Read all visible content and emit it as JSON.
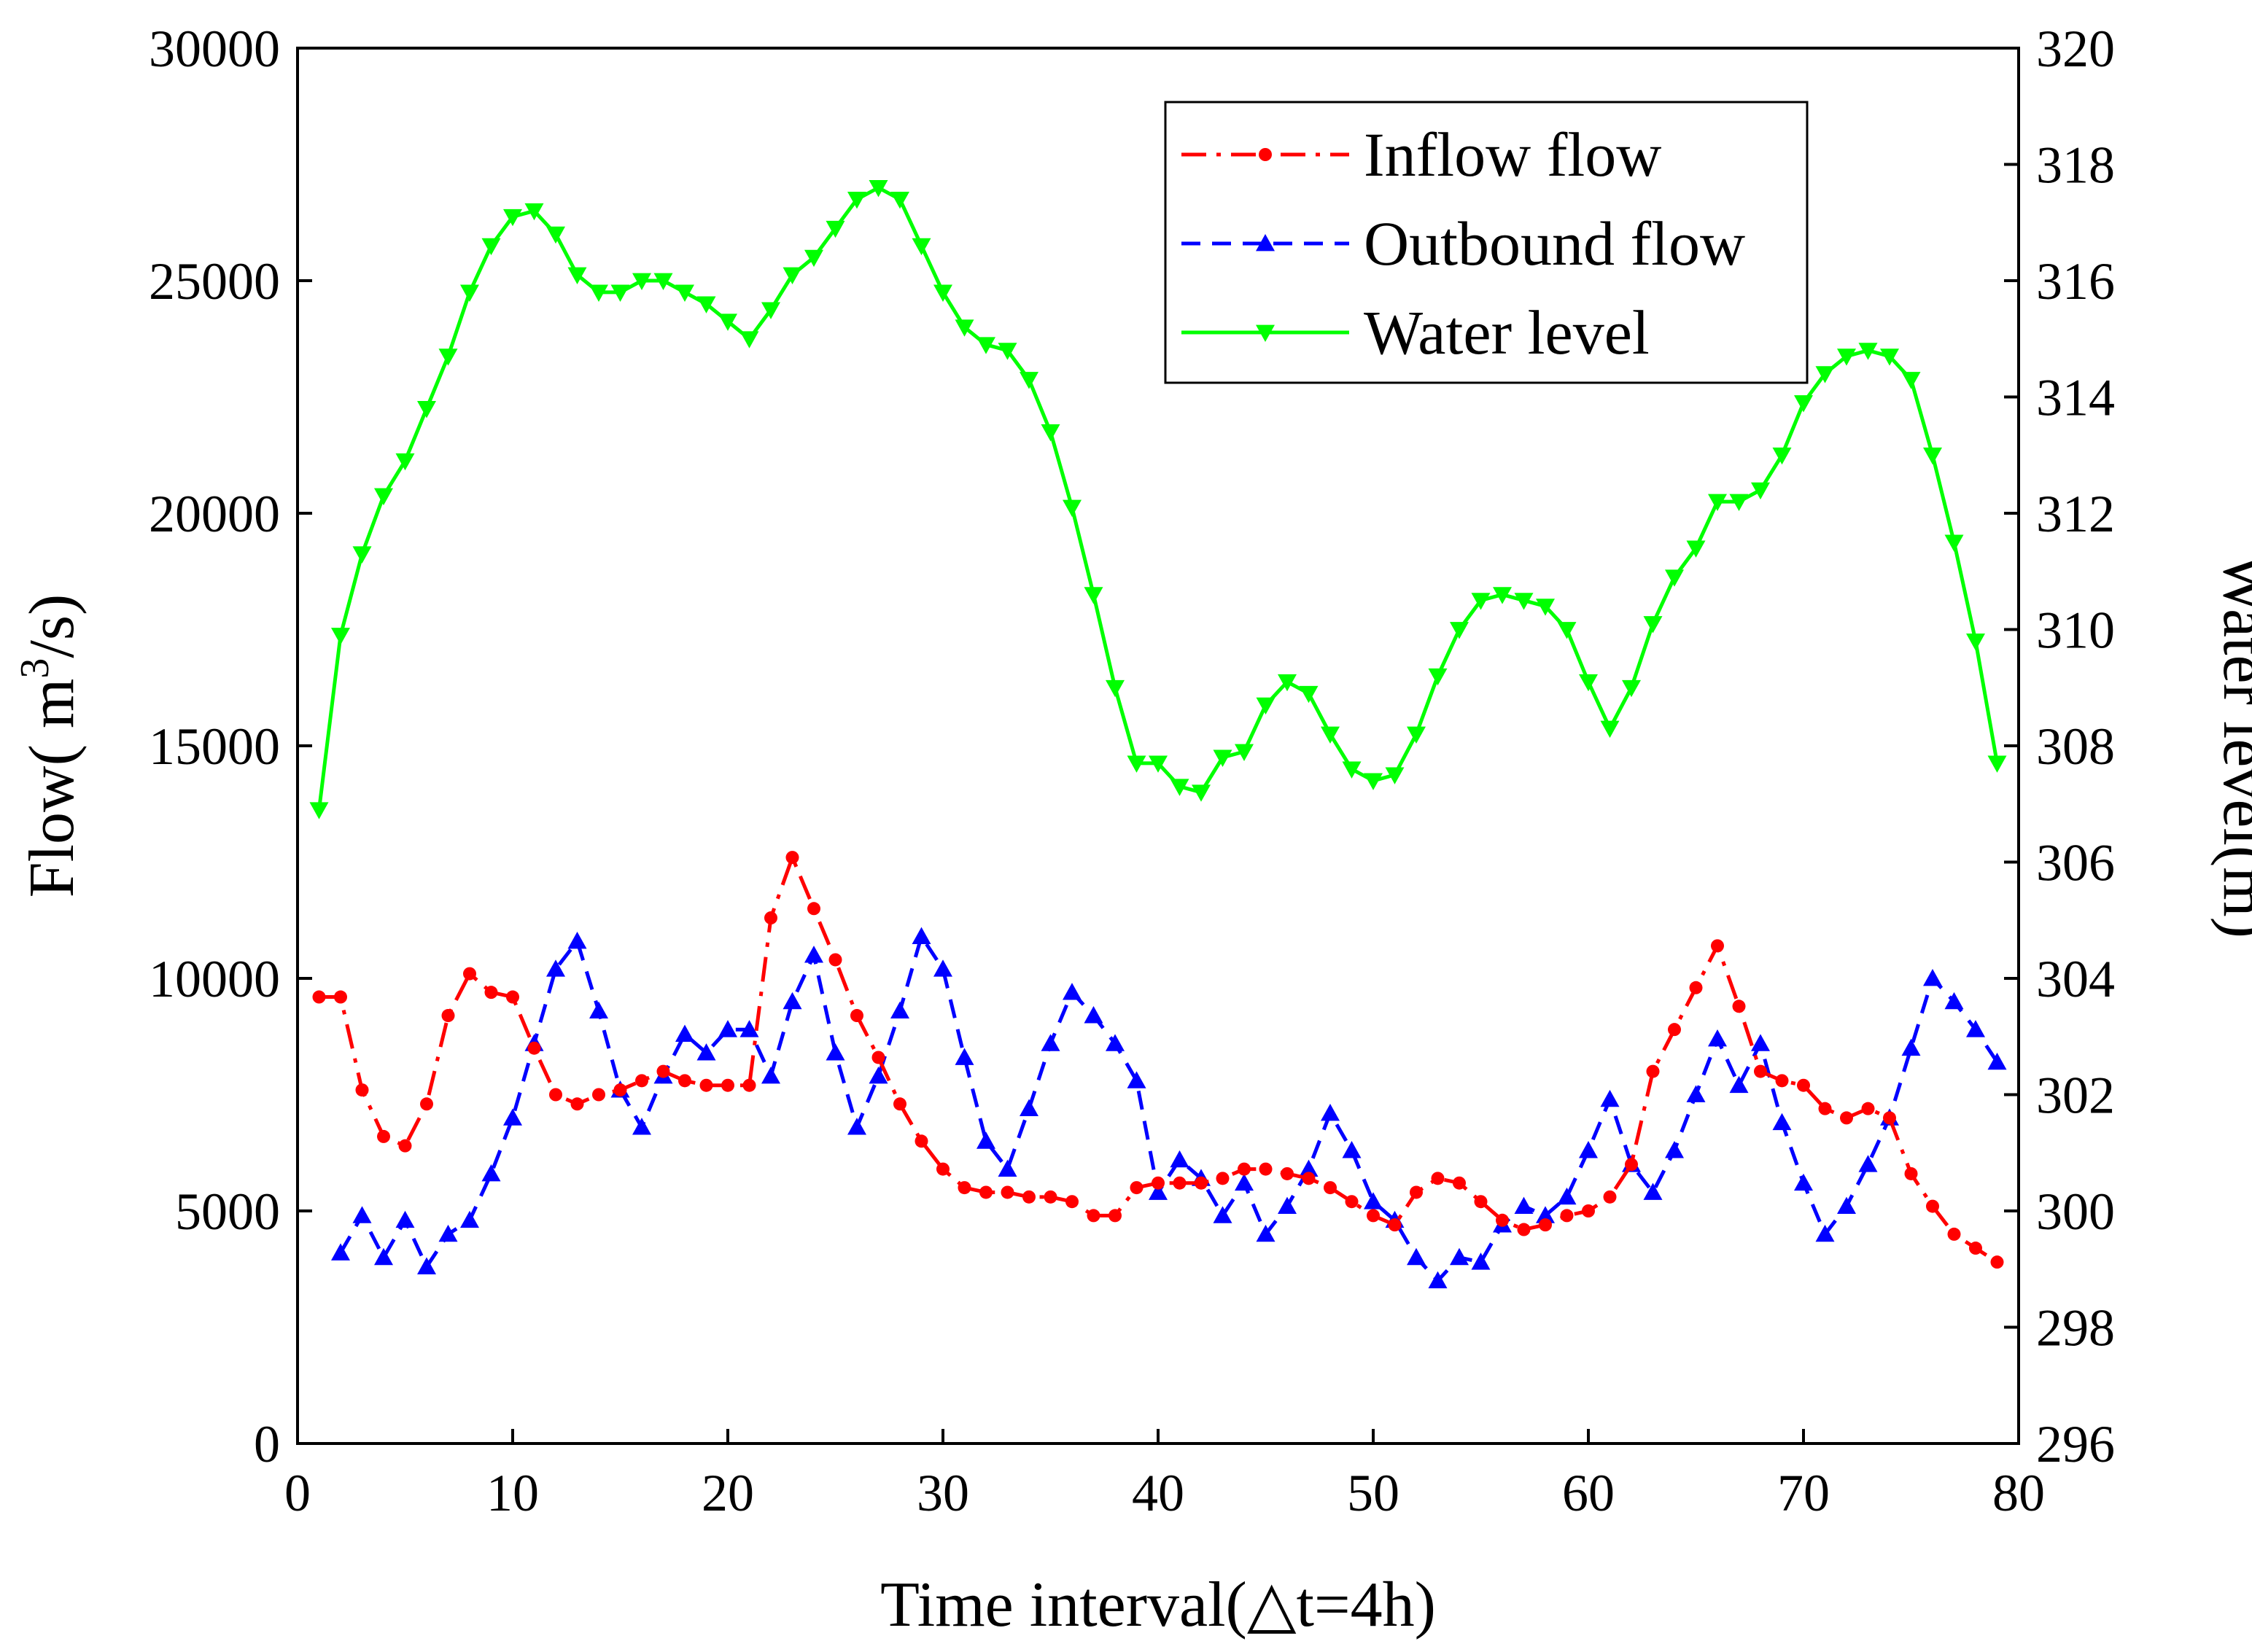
{
  "chart_data": {
    "type": "line",
    "xlabel": "Time interval(△t=4h)",
    "ylabel_left": "Flow( m³/s)",
    "ylabel_left_base": "Flow( m",
    "ylabel_left_sup": "3",
    "ylabel_left_tail": "/s)",
    "ylabel_right": "Water level(m)",
    "xlim": [
      0,
      80
    ],
    "ylim_left": [
      0,
      30000
    ],
    "ylim_right": [
      296,
      320
    ],
    "xticks": [
      0,
      10,
      20,
      30,
      40,
      50,
      60,
      70,
      80
    ],
    "yticks_left": [
      0,
      5000,
      10000,
      15000,
      20000,
      25000,
      30000
    ],
    "yticks_right": [
      296,
      298,
      300,
      302,
      304,
      306,
      308,
      310,
      312,
      314,
      316,
      318,
      320
    ],
    "legend_position": "top-right",
    "series": [
      {
        "name": "Inflow flow",
        "axis": "left",
        "color": "#ff0000",
        "line_style": "dash-dot",
        "marker": "circle",
        "x": [
          1,
          2,
          3,
          4,
          5,
          6,
          7,
          8,
          9,
          10,
          11,
          12,
          13,
          14,
          15,
          16,
          17,
          18,
          19,
          20,
          21,
          22,
          23,
          24,
          25,
          26,
          27,
          28,
          29,
          30,
          31,
          32,
          33,
          34,
          35,
          36,
          37,
          38,
          39,
          40,
          41,
          42,
          43,
          44,
          45,
          46,
          47,
          48,
          49,
          50,
          51,
          52,
          53,
          54,
          55,
          56,
          57,
          58,
          59,
          60,
          61,
          62,
          63,
          64,
          65,
          66,
          67,
          68,
          69,
          70,
          71,
          72,
          73,
          74,
          75,
          76,
          77,
          78,
          79
        ],
        "values": [
          9600,
          9600,
          7600,
          6600,
          6400,
          7300,
          9200,
          10100,
          9700,
          9600,
          8500,
          7500,
          7300,
          7500,
          7600,
          7800,
          8000,
          7800,
          7700,
          7700,
          7700,
          11300,
          12600,
          11500,
          10400,
          9200,
          8300,
          7300,
          6500,
          5900,
          5500,
          5400,
          5400,
          5300,
          5300,
          5200,
          4900,
          4900,
          5500,
          5600,
          5600,
          5600,
          5700,
          5900,
          5900,
          5800,
          5700,
          5500,
          5200,
          4900,
          4700,
          5400,
          5700,
          5600,
          5200,
          4800,
          4600,
          4700,
          4900,
          5000,
          5300,
          6000,
          8000,
          8900,
          9800,
          10700,
          9400,
          8000,
          7800,
          7700,
          7200,
          7000,
          7200,
          7000,
          5800,
          5100,
          4500,
          4200,
          3900
        ]
      },
      {
        "name": "Outbound flow",
        "axis": "left",
        "color": "#0000ff",
        "line_style": "dashed",
        "marker": "triangle-up",
        "x": [
          2,
          3,
          4,
          5,
          6,
          7,
          8,
          9,
          10,
          11,
          12,
          13,
          14,
          15,
          16,
          17,
          18,
          19,
          20,
          21,
          22,
          23,
          24,
          25,
          26,
          27,
          28,
          29,
          30,
          31,
          32,
          33,
          34,
          35,
          36,
          37,
          38,
          39,
          40,
          41,
          42,
          43,
          44,
          45,
          46,
          47,
          48,
          49,
          50,
          51,
          52,
          53,
          54,
          55,
          56,
          57,
          58,
          59,
          60,
          61,
          62,
          63,
          64,
          65,
          66,
          67,
          68,
          69,
          70,
          71,
          72,
          73,
          74,
          75,
          76,
          77,
          78,
          79
        ],
        "values": [
          4100,
          4900,
          4000,
          4800,
          3800,
          4500,
          4800,
          5800,
          7000,
          8600,
          10200,
          10800,
          9300,
          7600,
          6800,
          7900,
          8800,
          8400,
          8900,
          8900,
          7900,
          9500,
          10500,
          8400,
          6800,
          7900,
          9300,
          10900,
          10200,
          8300,
          6500,
          5900,
          7200,
          8600,
          9700,
          9200,
          8600,
          7800,
          5400,
          6100,
          5700,
          4900,
          5600,
          4500,
          5100,
          5900,
          7100,
          6300,
          5200,
          4800,
          4000,
          3500,
          4000,
          3900,
          4700,
          5100,
          4900,
          5300,
          6300,
          7400,
          6000,
          5400,
          6300,
          7500,
          8700,
          7700,
          8600,
          6900,
          5600,
          4500,
          5100,
          6000,
          7000,
          8500,
          10000,
          9500,
          8900,
          8200
        ]
      },
      {
        "name": "Water level",
        "axis": "right",
        "color": "#00ff00",
        "line_style": "solid",
        "marker": "triangle-down",
        "x": [
          1,
          2,
          3,
          4,
          5,
          6,
          7,
          8,
          9,
          10,
          11,
          12,
          13,
          14,
          15,
          16,
          17,
          18,
          19,
          20,
          21,
          22,
          23,
          24,
          25,
          26,
          27,
          28,
          29,
          30,
          31,
          32,
          33,
          34,
          35,
          36,
          37,
          38,
          39,
          40,
          41,
          42,
          43,
          44,
          45,
          46,
          47,
          48,
          49,
          50,
          51,
          52,
          53,
          54,
          55,
          56,
          57,
          58,
          59,
          60,
          61,
          62,
          63,
          64,
          65,
          66,
          67,
          68,
          69,
          70,
          71,
          72,
          73,
          74,
          75,
          76,
          77,
          78,
          79
        ],
        "values": [
          306.9,
          309.9,
          311.3,
          312.3,
          312.9,
          313.8,
          314.7,
          315.8,
          316.6,
          317.1,
          317.2,
          316.8,
          316.1,
          315.8,
          315.8,
          316.0,
          316.0,
          315.8,
          315.6,
          315.3,
          315.0,
          315.5,
          316.1,
          316.4,
          316.9,
          317.4,
          317.6,
          317.4,
          316.6,
          315.8,
          315.2,
          314.9,
          314.8,
          314.3,
          313.4,
          312.1,
          310.6,
          309.0,
          307.7,
          307.7,
          307.3,
          307.2,
          307.8,
          307.9,
          308.7,
          309.1,
          308.9,
          308.2,
          307.6,
          307.4,
          307.5,
          308.2,
          309.2,
          310.0,
          310.5,
          310.6,
          310.5,
          310.4,
          310.0,
          309.1,
          308.3,
          309.0,
          310.1,
          310.9,
          311.4,
          312.2,
          312.2,
          312.4,
          313.0,
          313.9,
          314.4,
          314.7,
          314.8,
          314.7,
          314.3,
          313.0,
          311.5,
          309.8,
          307.7
        ]
      }
    ]
  }
}
